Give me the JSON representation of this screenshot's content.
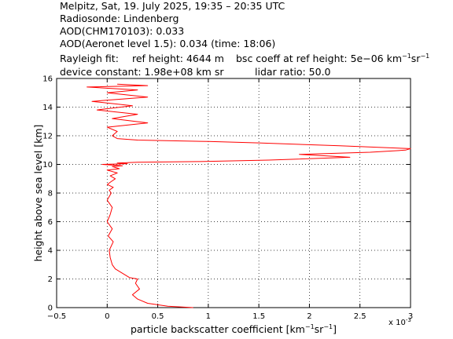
{
  "header": {
    "line1": "Melpitz, Sat, 19. July 2025, 19:35 – 20:35 UTC",
    "line2": "Radiosonde: Lindenberg",
    "line3": "AOD(CHM170103): 0.033",
    "line4": "AOD(Aeronet level 1.5): 0.034   (time: 18:06)",
    "rayleigh_label": "Rayleigh fit:",
    "ref_height": "ref height: 4644 m",
    "bsc_coeff_prefix": "bsc coeff at ref height: 5e−06 km",
    "bsc_coeff_unit_sup1": "−1",
    "bsc_coeff_unit_sr": "sr",
    "bsc_coeff_unit_sup2": "−1",
    "device_constant": "device constant: 1.98e+08 km sr",
    "lidar_ratio": "lidar ratio: 50.0"
  },
  "chart_data": {
    "type": "line",
    "xlabel_prefix": "particle backscatter coefficient [km",
    "xlabel_sup1": "−1",
    "xlabel_mid": "sr",
    "xlabel_sup2": "−1",
    "xlabel_suffix": "]",
    "ylabel": "height above sea level [km]",
    "x_multiplier_label": "x 10",
    "x_multiplier_exp": "-3",
    "xlim": [
      -0.5,
      3.0
    ],
    "ylim": [
      0,
      16
    ],
    "xticks": [
      "−0.5",
      "0",
      "0.5",
      "1",
      "1.5",
      "2",
      "2.5",
      "3"
    ],
    "yticks": [
      "0",
      "2",
      "4",
      "6",
      "8",
      "10",
      "12",
      "14",
      "16"
    ],
    "grid": true,
    "line_color": "#ff0000",
    "series": [
      {
        "x": [
          0.85,
          0.6,
          0.4,
          0.3,
          0.25,
          0.32,
          0.28,
          0.3,
          0.22,
          0.15,
          0.08,
          0.05,
          0.03,
          0.02,
          0.06,
          0.01,
          0.05,
          0.0,
          0.03,
          0.05,
          0.0,
          0.04,
          0.02,
          0.06,
          0.0,
          0.04,
          0.08,
          0.03,
          0.1,
          0.0,
          0.12,
          0.05,
          0.15,
          -0.05,
          0.2,
          0.1,
          0.3,
          0.9,
          1.6,
          2.4,
          1.9,
          2.6,
          2.95,
          3.0,
          2.3,
          1.5,
          1.0,
          0.3,
          0.1,
          0.05,
          0.1,
          0.0,
          0.4,
          0.05,
          0.3,
          -0.1,
          0.25,
          -0.15,
          0.4,
          0.0,
          0.3,
          -0.2,
          0.4,
          0.1
        ],
        "y": [
          0.0,
          0.1,
          0.3,
          0.6,
          0.9,
          1.3,
          1.7,
          2.0,
          2.1,
          2.4,
          2.7,
          3.0,
          3.5,
          4.0,
          4.6,
          5.0,
          5.5,
          6.0,
          6.5,
          7.0,
          7.5,
          8.0,
          8.2,
          8.4,
          8.6,
          8.8,
          9.0,
          9.2,
          9.4,
          9.6,
          9.7,
          9.85,
          9.9,
          10.0,
          10.05,
          10.1,
          10.15,
          10.2,
          10.3,
          10.5,
          10.7,
          10.85,
          11.0,
          11.1,
          11.3,
          11.5,
          11.6,
          11.7,
          11.8,
          12.0,
          12.3,
          12.6,
          12.9,
          13.2,
          13.5,
          13.8,
          14.1,
          14.4,
          14.7,
          15.0,
          15.2,
          15.4,
          15.5,
          15.6
        ]
      }
    ]
  }
}
